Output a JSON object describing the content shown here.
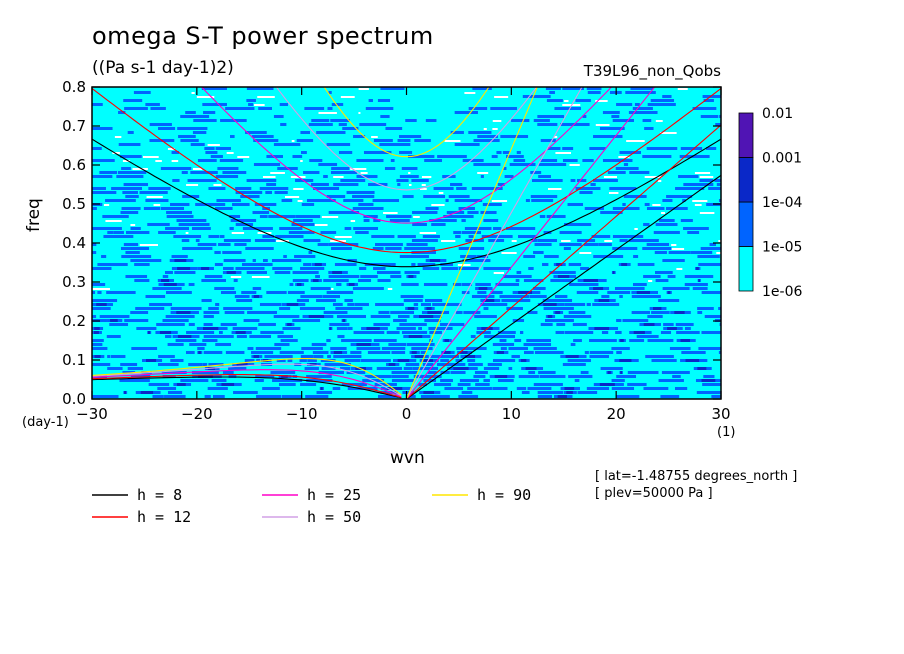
{
  "title": "omega S-T power spectrum",
  "units": "((Pa s-1 day-1)2)",
  "run_label": "T39L96_non_Qobs",
  "info": [
    "[ lat=-1.48755 degrees_north ]",
    "[ plev=50000 Pa ]"
  ],
  "chart_data": {
    "type": "heatmap",
    "xlabel": "wvn",
    "ylabel": "freq",
    "x_unit": "(1)",
    "y_unit": "(day-1)",
    "xlim": [
      -30,
      30
    ],
    "ylim": [
      0,
      0.8
    ],
    "x_ticks": [
      -30,
      -20,
      -10,
      0,
      10,
      20,
      30
    ],
    "y_ticks": [
      0.0,
      0.1,
      0.2,
      0.3,
      0.4,
      0.5,
      0.6,
      0.7,
      0.8
    ],
    "colorbar": {
      "levels": [
        "1e-06",
        "1e-05",
        "1e-04",
        "0.001",
        "0.01"
      ],
      "colors": [
        "#00ffff",
        "#0064ff",
        "#0a28c8",
        "#5014b4"
      ]
    },
    "dispersion_curves": [
      {
        "name": "h =  8",
        "color": "#000000"
      },
      {
        "name": "h = 12",
        "color": "#ff0000"
      },
      {
        "name": "h = 25",
        "color": "#ff00c8"
      },
      {
        "name": "h = 50",
        "color": "#d2a0e6"
      },
      {
        "name": "h = 90",
        "color": "#ffe600"
      }
    ]
  }
}
